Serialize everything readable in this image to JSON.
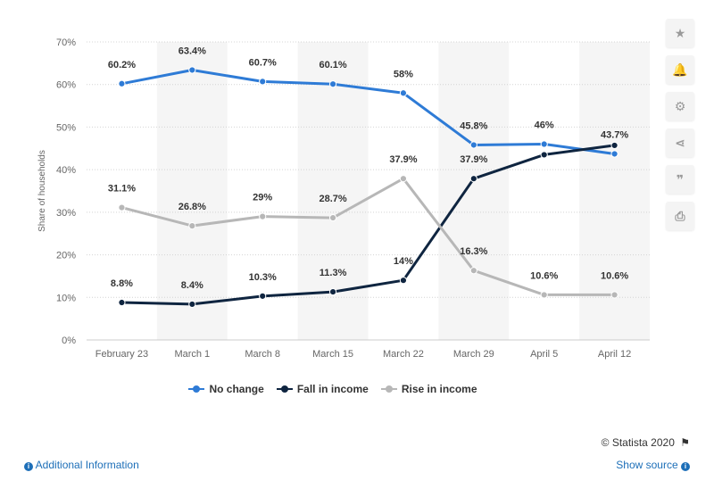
{
  "chart_data": {
    "type": "line",
    "title": "",
    "xlabel": "",
    "ylabel": "Share of households",
    "categories": [
      "February 23",
      "March 1",
      "March 8",
      "March 15",
      "March 22",
      "March 29",
      "April 5",
      "April 12"
    ],
    "ylim": [
      0,
      70
    ],
    "y_ticks": [
      "0%",
      "10%",
      "20%",
      "30%",
      "40%",
      "50%",
      "60%",
      "70%"
    ],
    "grid": true,
    "legend_position": "bottom",
    "series": [
      {
        "name": "No change",
        "color": "#2e7bd6",
        "values": [
          60.2,
          63.4,
          60.7,
          60.1,
          58,
          45.8,
          46,
          43.7
        ],
        "labels": [
          "60.2%",
          "63.4%",
          "60.7%",
          "60.1%",
          "58%",
          "45.8%",
          "46%",
          "43.7%"
        ]
      },
      {
        "name": "Fall in income",
        "color": "#0f2540",
        "values": [
          8.8,
          8.4,
          10.3,
          11.3,
          14,
          37.9,
          43.5,
          45.7
        ],
        "labels": [
          "8.8%",
          "8.4%",
          "10.3%",
          "11.3%",
          "14%",
          "37.9%",
          "",
          ""
        ]
      },
      {
        "name": "Rise in income",
        "color": "#b7b7b7",
        "values": [
          31.1,
          26.8,
          29,
          28.7,
          37.9,
          16.3,
          10.6,
          10.6
        ],
        "labels": [
          "31.1%",
          "26.8%",
          "29%",
          "28.7%",
          "37.9%",
          "16.3%",
          "10.6%",
          "10.6%"
        ]
      }
    ]
  },
  "legend": {
    "items": [
      {
        "label": "No change",
        "color": "#2e7bd6"
      },
      {
        "label": "Fall in income",
        "color": "#0f2540"
      },
      {
        "label": "Rise in income",
        "color": "#b7b7b7"
      }
    ]
  },
  "toolbar": {
    "star_glyph": "★",
    "bell_glyph": "🔔",
    "gear_glyph": "⚙",
    "share_glyph": "⋖",
    "quote_glyph": "❞",
    "print_glyph": "⎙"
  },
  "footer": {
    "credit": "© Statista 2020",
    "flag_glyph": "⚑",
    "additional_info": "Additional Information",
    "show_source": "Show source",
    "info_glyph": "i"
  }
}
